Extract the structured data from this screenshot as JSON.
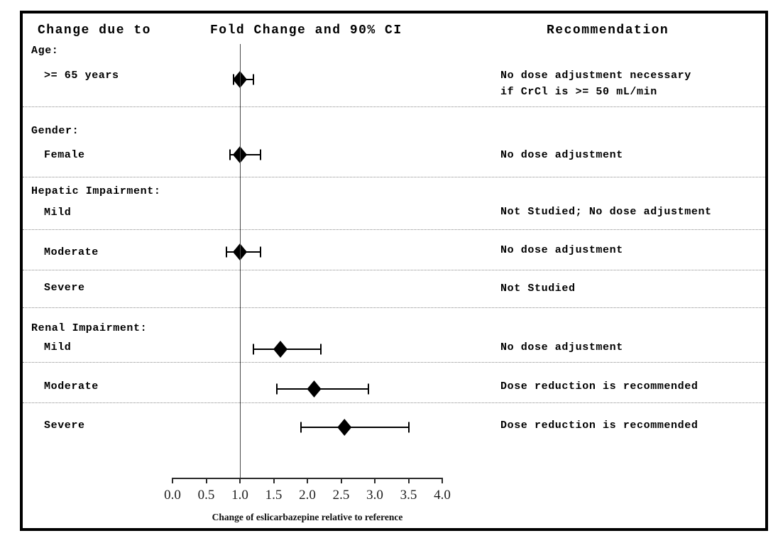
{
  "header": {
    "change_due_to": "Change due to",
    "fold_change": "Fold Change and 90% CI",
    "recommendation": "Recommendation"
  },
  "axis": {
    "label": "Change of eslicarbazepine relative to reference",
    "ticks": [
      "0.0",
      "0.5",
      "1.0",
      "1.5",
      "2.0",
      "2.5",
      "3.0",
      "3.5",
      "4.0"
    ]
  },
  "chart_data": {
    "type": "scatter",
    "subtype": "forest-plot",
    "title": "Fold Change and 90% CI",
    "xlabel": "Change of eslicarbazepine relative to reference",
    "xlim": [
      0.0,
      4.0
    ],
    "xticks": [
      0.0,
      0.5,
      1.0,
      1.5,
      2.0,
      2.5,
      3.0,
      3.5,
      4.0
    ],
    "reference_line_x": 1.0,
    "marker": "diamond",
    "ci_level": "90%",
    "rows": [
      {
        "group": "Age:",
        "label": ">= 65 years",
        "estimate": 1.0,
        "ci90": [
          0.9,
          1.2
        ],
        "recommendation": [
          "No dose adjustment necessary",
          "if CrCl is >= 50 mL/min"
        ]
      },
      {
        "group": "Gender:",
        "label": "Female",
        "estimate": 1.0,
        "ci90": [
          0.85,
          1.3
        ],
        "recommendation": [
          "No dose adjustment"
        ]
      },
      {
        "group": "Hepatic Impairment:",
        "label": "Mild",
        "estimate": null,
        "ci90": null,
        "recommendation": [
          "Not Studied; No dose adjustment"
        ]
      },
      {
        "group": null,
        "label": "Moderate",
        "estimate": 1.0,
        "ci90": [
          0.8,
          1.3
        ],
        "recommendation": [
          "No dose adjustment"
        ]
      },
      {
        "group": null,
        "label": "Severe",
        "estimate": null,
        "ci90": null,
        "recommendation": [
          "Not Studied"
        ]
      },
      {
        "group": "Renal Impairment:",
        "label": "Mild",
        "estimate": 1.6,
        "ci90": [
          1.2,
          2.2
        ],
        "recommendation": [
          "No dose adjustment"
        ]
      },
      {
        "group": null,
        "label": "Moderate",
        "estimate": 2.1,
        "ci90": [
          1.55,
          2.9
        ],
        "recommendation": [
          "Dose reduction is recommended"
        ]
      },
      {
        "group": null,
        "label": "Severe",
        "estimate": 2.55,
        "ci90": [
          1.9,
          3.5
        ],
        "recommendation": [
          "Dose reduction is recommended"
        ]
      }
    ],
    "colors": {
      "marker": "#000000",
      "reference_line": "#4a4a4a",
      "separator": "#8a8a8a"
    }
  }
}
